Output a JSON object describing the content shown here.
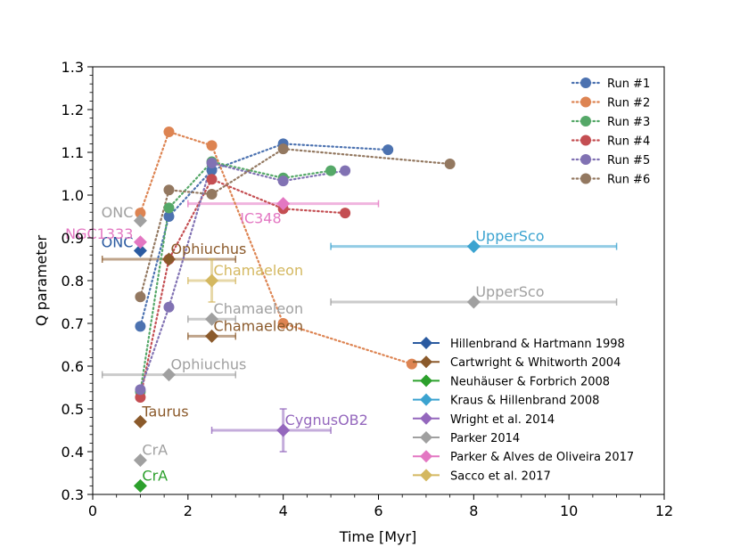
{
  "chart_data": {
    "type": "scatter",
    "xlabel": "Time [Myr]",
    "ylabel": "Q parameter",
    "xlim": [
      0,
      12
    ],
    "ylim": [
      0.3,
      1.3
    ],
    "xticks": [
      "0",
      "2",
      "4",
      "6",
      "8",
      "10",
      "12"
    ],
    "yticks": [
      "0.3",
      "0.4",
      "0.5",
      "0.6",
      "0.7",
      "0.8",
      "0.9",
      "1.0",
      "1.1",
      "1.2",
      "1.3"
    ],
    "grid": false,
    "runs": [
      {
        "name": "Run #1",
        "color": "#4c72b0",
        "points": [
          [
            1.0,
            0.693
          ],
          [
            1.6,
            0.95
          ],
          [
            2.5,
            1.058
          ],
          [
            4.0,
            1.12
          ],
          [
            6.2,
            1.106
          ]
        ]
      },
      {
        "name": "Run #2",
        "color": "#dd8452",
        "points": [
          [
            1.0,
            0.958
          ],
          [
            1.6,
            1.148
          ],
          [
            2.5,
            1.116
          ],
          [
            4.0,
            0.7
          ],
          [
            6.7,
            0.605
          ]
        ]
      },
      {
        "name": "Run #3",
        "color": "#55a868",
        "points": [
          [
            1.0,
            0.54
          ],
          [
            1.6,
            0.97
          ],
          [
            2.5,
            1.078
          ],
          [
            4.0,
            1.04
          ],
          [
            5.0,
            1.057
          ]
        ]
      },
      {
        "name": "Run #4",
        "color": "#c44e52",
        "points": [
          [
            1.0,
            0.527
          ],
          [
            1.6,
            0.85
          ],
          [
            2.5,
            1.037
          ],
          [
            4.0,
            0.968
          ],
          [
            5.3,
            0.958
          ]
        ]
      },
      {
        "name": "Run #5",
        "color": "#8172b3",
        "points": [
          [
            1.0,
            0.545
          ],
          [
            1.6,
            0.738
          ],
          [
            2.5,
            1.075
          ],
          [
            4.0,
            1.033
          ],
          [
            5.3,
            1.057
          ]
        ]
      },
      {
        "name": "Run #6",
        "color": "#937860",
        "points": [
          [
            1.0,
            0.762
          ],
          [
            1.6,
            1.012
          ],
          [
            2.5,
            1.002
          ],
          [
            4.0,
            1.108
          ],
          [
            7.5,
            1.073
          ]
        ]
      }
    ],
    "observations": [
      {
        "legend": "Hillenbrand & Hartmann 1998",
        "color": "#2a5aa0",
        "points": [
          {
            "label": "ONC",
            "x": 1.0,
            "y": 0.87,
            "xerr": null,
            "yerr": null,
            "label_side": "left"
          }
        ]
      },
      {
        "legend": "Cartwright & Whitworth 2004",
        "color": "#8b5a2b",
        "points": [
          {
            "label": "Ophiuchus",
            "x": 1.6,
            "y": 0.85,
            "xerr": [
              0.2,
              3.0
            ],
            "yerr": null,
            "label_side": "right"
          },
          {
            "label": "Chamaeleon",
            "x": 2.5,
            "y": 0.67,
            "xerr": [
              2.0,
              3.0
            ],
            "yerr": null,
            "label_side": "right"
          },
          {
            "label": "Taurus",
            "x": 1.0,
            "y": 0.47,
            "xerr": null,
            "yerr": null,
            "label_side": "right"
          }
        ]
      },
      {
        "legend": "Neuhäuser & Forbrich 2008",
        "color": "#2ca02c",
        "points": [
          {
            "label": "CrA",
            "x": 1.0,
            "y": 0.32,
            "xerr": null,
            "yerr": null,
            "label_side": "right"
          }
        ]
      },
      {
        "legend": "Kraus & Hillenbrand 2008",
        "color": "#3ba3d0",
        "points": [
          {
            "label": "UpperSco",
            "x": 8.0,
            "y": 0.88,
            "xerr": [
              5.0,
              11.0
            ],
            "yerr": null,
            "label_side": "right"
          }
        ]
      },
      {
        "legend": "Wright et al. 2014",
        "color": "#9467bd",
        "points": [
          {
            "label": "CygnusOB2",
            "x": 4.0,
            "y": 0.45,
            "xerr": [
              2.5,
              5.0
            ],
            "yerr": [
              0.4,
              0.5
            ],
            "label_side": "right"
          }
        ]
      },
      {
        "legend": "Parker 2014",
        "color": "#a0a0a0",
        "points": [
          {
            "label": "ONC",
            "x": 1.0,
            "y": 0.94,
            "xerr": null,
            "yerr": null,
            "label_side": "left"
          },
          {
            "label": "UpperSco",
            "x": 8.0,
            "y": 0.75,
            "xerr": [
              5.0,
              11.0
            ],
            "yerr": null,
            "label_side": "right"
          },
          {
            "label": "Chamaeleon",
            "x": 2.5,
            "y": 0.71,
            "xerr": [
              2.0,
              3.0
            ],
            "yerr": null,
            "label_side": "right"
          },
          {
            "label": "Ophiuchus",
            "x": 1.6,
            "y": 0.58,
            "xerr": [
              0.2,
              3.0
            ],
            "yerr": null,
            "label_side": "right"
          },
          {
            "label": "CrA",
            "x": 1.0,
            "y": 0.38,
            "xerr": null,
            "yerr": null,
            "label_side": "right"
          }
        ]
      },
      {
        "legend": "Parker & Alves de Oliveira 2017",
        "color": "#e377c2",
        "points": [
          {
            "label": "NGC1333",
            "x": 1.0,
            "y": 0.89,
            "xerr": null,
            "yerr": null,
            "label_side": "left"
          },
          {
            "label": "IC348",
            "x": 4.0,
            "y": 0.98,
            "xerr": [
              2.0,
              6.0
            ],
            "yerr": null,
            "label_side": "below"
          }
        ]
      },
      {
        "legend": "Sacco et al. 2017",
        "color": "#d4b860",
        "points": [
          {
            "label": "Chamaeleon",
            "x": 2.5,
            "y": 0.8,
            "xerr": [
              2.0,
              3.0
            ],
            "yerr": [
              0.75,
              0.85
            ],
            "label_side": "right"
          }
        ]
      }
    ]
  }
}
